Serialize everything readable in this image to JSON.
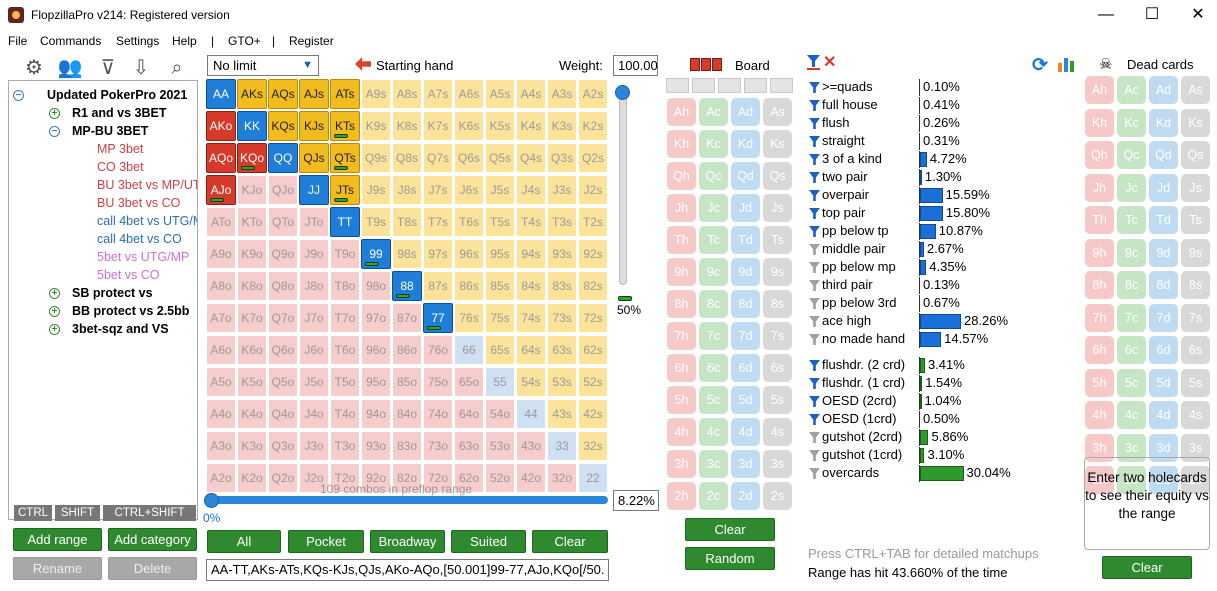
{
  "window": {
    "title": "FlopzillaPro v214: Registered version",
    "minimize": "—",
    "maximize": "☐",
    "close": "✕"
  },
  "menu": [
    "File",
    "Commands",
    "Settings",
    "Help",
    "|",
    "GTO+",
    "|",
    "Register"
  ],
  "toolbar_icons": [
    "gear-icon",
    "users-icon",
    "filter-add-icon",
    "import-icon",
    "search-icon"
  ],
  "tree": {
    "root": "Updated PokerPro 2021",
    "items": [
      {
        "label": "R1 and vs 3BET",
        "bold": true,
        "color": "#000000",
        "exp": "+",
        "level": 1
      },
      {
        "label": "MP-BU 3BET",
        "bold": true,
        "color": "#000000",
        "exp": "-",
        "level": 1
      },
      {
        "label": "MP 3bet",
        "bold": false,
        "color": "#d04040",
        "exp": "",
        "level": 2
      },
      {
        "label": "CO 3bet",
        "bold": false,
        "color": "#d04040",
        "exp": "",
        "level": 2
      },
      {
        "label": "BU 3bet vs MP/UTG",
        "bold": false,
        "color": "#d04040",
        "exp": "",
        "level": 2
      },
      {
        "label": "BU 3bet vs CO",
        "bold": false,
        "color": "#d04040",
        "exp": "",
        "level": 2
      },
      {
        "label": "call 4bet vs UTG/MP",
        "bold": false,
        "color": "#2a6fb0",
        "exp": "",
        "level": 2
      },
      {
        "label": "call 4bet vs CO",
        "bold": false,
        "color": "#2a6fb0",
        "exp": "",
        "level": 2
      },
      {
        "label": "5bet vs UTG/MP",
        "bold": false,
        "color": "#d070d0",
        "exp": "",
        "level": 2
      },
      {
        "label": "5bet vs CO",
        "bold": false,
        "color": "#d070d0",
        "exp": "",
        "level": 2
      },
      {
        "label": "SB protect vs",
        "bold": true,
        "color": "#000000",
        "exp": "+",
        "level": 1
      },
      {
        "label": "BB protect vs 2.5bb",
        "bold": true,
        "color": "#000000",
        "exp": "+",
        "level": 1
      },
      {
        "label": "3bet-sqz and VS",
        "bold": true,
        "color": "#000000",
        "exp": "+",
        "level": 1
      }
    ]
  },
  "key_tabs": [
    "CTRL",
    "SHIFT",
    "CTRL+SHIFT"
  ],
  "left_buttons": {
    "add_range": "Add range",
    "add_category": "Add category",
    "rename": "Rename",
    "delete": "Delete"
  },
  "range": {
    "limit_select": "No limit",
    "starting_hand_label": "Starting hand",
    "weight_label": "Weight:",
    "weight_value": "100.00",
    "vertical_pct": "50%",
    "combos_text": "109 combos in preflop range",
    "slider_pct": "0%",
    "range_pct": "8.22%",
    "buttons": [
      "All",
      "Pocket",
      "Broadway",
      "Suited",
      "Clear"
    ],
    "range_string": "AA-TT,AKs-ATs,KQs-KJs,QJs,AKo-AQo,[50.001]99-77,AJo,KQo[/50.",
    "ranks": [
      "A",
      "K",
      "Q",
      "J",
      "T",
      "9",
      "8",
      "7",
      "6",
      "5",
      "4",
      "3",
      "2"
    ],
    "selected": [
      "AA",
      "AKs",
      "AQs",
      "AJs",
      "ATs",
      "AKo",
      "KK",
      "KQs",
      "KJs",
      "KTs",
      "AQo",
      "KQo",
      "QQ",
      "QJs",
      "QTs",
      "AJo",
      "JJ",
      "JTs",
      "TT",
      "99",
      "88",
      "77"
    ],
    "weighted": [
      "KTs",
      "KQo",
      "QTs",
      "AJo",
      "JTs",
      "99",
      "88",
      "77"
    ]
  },
  "board": {
    "title": "Board",
    "slots": 5,
    "ranks": [
      "A",
      "K",
      "Q",
      "J",
      "T",
      "9",
      "8",
      "7",
      "6",
      "5",
      "4",
      "3",
      "2"
    ],
    "suits": [
      "h",
      "c",
      "d",
      "s"
    ],
    "clear": "Clear",
    "random": "Random"
  },
  "stats": {
    "made": [
      {
        "name": ">=quads",
        "pct": "0.10%",
        "v": 0.1,
        "f": "blue"
      },
      {
        "name": "full house",
        "pct": "0.41%",
        "v": 0.41,
        "f": "blue"
      },
      {
        "name": "flush",
        "pct": "0.26%",
        "v": 0.26,
        "f": "blue"
      },
      {
        "name": "straight",
        "pct": "0.31%",
        "v": 0.31,
        "f": "blue"
      },
      {
        "name": "3 of a kind",
        "pct": "4.72%",
        "v": 4.72,
        "f": "blue"
      },
      {
        "name": "two pair",
        "pct": "1.30%",
        "v": 1.3,
        "f": "blue"
      },
      {
        "name": "overpair",
        "pct": "15.59%",
        "v": 15.59,
        "f": "blue"
      },
      {
        "name": "top pair",
        "pct": "15.80%",
        "v": 15.8,
        "f": "blue"
      },
      {
        "name": "pp below tp",
        "pct": "10.87%",
        "v": 10.87,
        "f": "blue"
      },
      {
        "name": "middle pair",
        "pct": "2.67%",
        "v": 2.67,
        "f": "gray"
      },
      {
        "name": "pp below mp",
        "pct": "4.35%",
        "v": 4.35,
        "f": "gray"
      },
      {
        "name": "third pair",
        "pct": "0.13%",
        "v": 0.13,
        "f": "gray"
      },
      {
        "name": "pp below 3rd",
        "pct": "0.67%",
        "v": 0.67,
        "f": "gray"
      },
      {
        "name": "ace high",
        "pct": "28.26%",
        "v": 28.26,
        "f": "gray"
      },
      {
        "name": "no made hand",
        "pct": "14.57%",
        "v": 14.57,
        "f": "gray"
      }
    ],
    "draws": [
      {
        "name": "flushdr. (2 crd)",
        "pct": "3.41%",
        "v": 3.41,
        "f": "blue"
      },
      {
        "name": "flushdr. (1 crd)",
        "pct": "1.54%",
        "v": 1.54,
        "f": "blue"
      },
      {
        "name": "OESD (2crd)",
        "pct": "1.04%",
        "v": 1.04,
        "f": "blue"
      },
      {
        "name": "OESD (1crd)",
        "pct": "0.50%",
        "v": 0.5,
        "f": "blue"
      },
      {
        "name": "gutshot (2crd)",
        "pct": "5.86%",
        "v": 5.86,
        "f": "gray"
      },
      {
        "name": "gutshot (1crd)",
        "pct": "3.10%",
        "v": 3.1,
        "f": "gray"
      },
      {
        "name": "overcards",
        "pct": "30.04%",
        "v": 30.04,
        "f": "gray"
      }
    ],
    "hint": "Press CTRL+TAB for detailed matchups",
    "hit": "Range has hit 43.660% of the time"
  },
  "dead": {
    "title": "Dead cards",
    "info": "Enter two holecards to see their equity vs the range",
    "clear": "Clear"
  },
  "colors": {
    "accent_blue": "#1f7fd8",
    "suited_gold": "#f2bc1e",
    "offsuit_red": "#d63a2a",
    "button_green": "#2f8a2f"
  }
}
